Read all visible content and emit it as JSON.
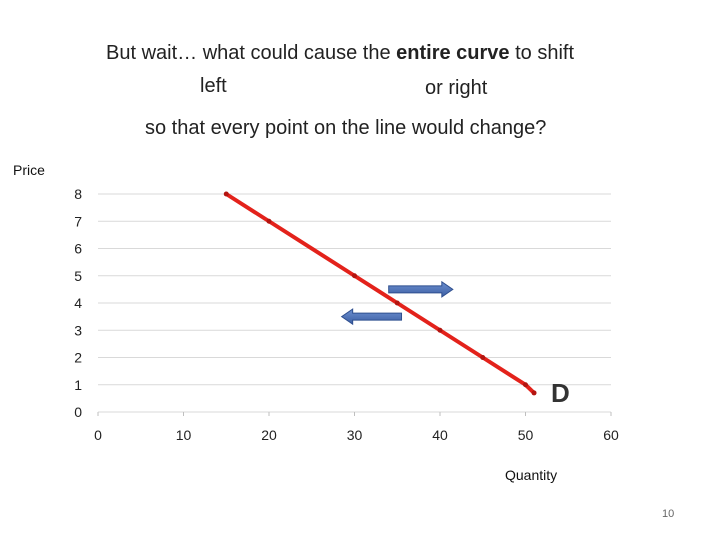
{
  "heading": {
    "line1_pre": "But wait… what could cause the ",
    "line1_bold": "entire curve",
    "line1_post": " to shift",
    "line2_left": "left",
    "line2_right": "or right",
    "line3": "so that every point on the line would change?"
  },
  "page_number": "10",
  "chart_data": {
    "type": "line",
    "title": "",
    "xlabel": "Quantity",
    "ylabel": "Price",
    "xlim": [
      0,
      60
    ],
    "ylim": [
      0,
      8
    ],
    "x_ticks": [
      0,
      10,
      20,
      30,
      40,
      50,
      60
    ],
    "y_ticks": [
      0,
      1,
      2,
      3,
      4,
      5,
      6,
      7,
      8
    ],
    "grid": "horizontal",
    "series": [
      {
        "name": "D",
        "color": "#e3221b",
        "points": [
          {
            "x": 15,
            "y": 8
          },
          {
            "x": 20,
            "y": 7
          },
          {
            "x": 30,
            "y": 5
          },
          {
            "x": 35,
            "y": 4
          },
          {
            "x": 40,
            "y": 3
          },
          {
            "x": 45,
            "y": 2
          },
          {
            "x": 50,
            "y": 1
          },
          {
            "x": 51,
            "y": 0.7
          }
        ]
      }
    ],
    "annotations": [
      {
        "type": "arrow",
        "direction": "right",
        "color": "#4a6fb5",
        "from": {
          "x": 34,
          "y": 4.5
        },
        "to": {
          "x": 41.5,
          "y": 4.5
        }
      },
      {
        "type": "arrow",
        "direction": "left",
        "color": "#4a6fb5",
        "from": {
          "x": 35.5,
          "y": 3.5
        },
        "to": {
          "x": 28.5,
          "y": 3.5
        }
      }
    ]
  }
}
